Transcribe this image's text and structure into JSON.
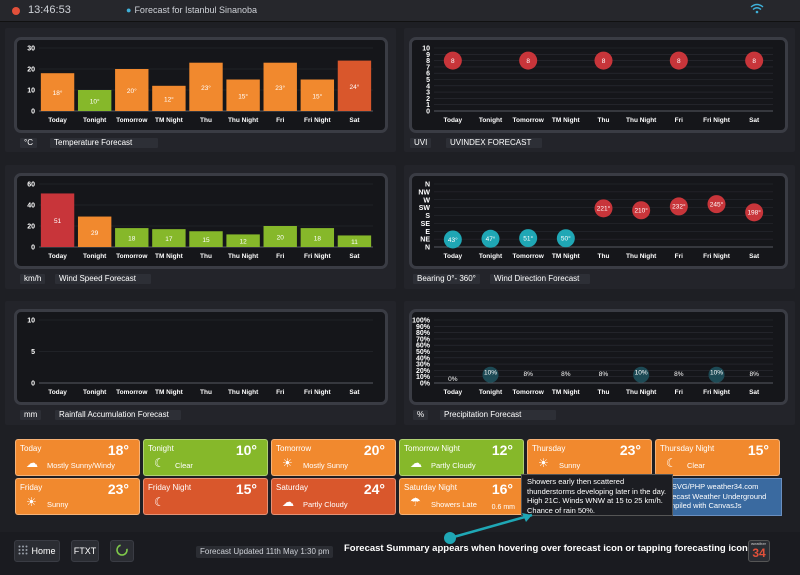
{
  "titlebar": {
    "time": "13:46:53",
    "location": "Forecast for Istanbul Sinanoba"
  },
  "colors": {
    "orange": "#f1892e",
    "green": "#86b82a",
    "red": "#c8353a",
    "brown": "#d9572c",
    "blue": "#3a6aa0",
    "teal": "#1fa7b5"
  },
  "panels": {
    "temperature": {
      "unit": "°C",
      "caption": "Temperature Forecast"
    },
    "uvi": {
      "unit": "UVI",
      "caption": "UVINDEX FORECAST"
    },
    "wind": {
      "unit": "km/h",
      "caption": "Wind Speed Forecast"
    },
    "direction": {
      "unit": "Bearing 0°- 360°",
      "caption": "Wind Direction Forecast"
    },
    "rain": {
      "unit": "mm",
      "caption": "Rainfall Accumulation Forecast"
    },
    "precip": {
      "unit": "%",
      "caption": "Precipitation Forecast"
    }
  },
  "chart_data": [
    {
      "id": "temperature",
      "type": "bar",
      "categories": [
        "Today",
        "Tonight",
        "Tomorrow",
        "TM Night",
        "Thu",
        "Thu Night",
        "Fri",
        "Fri Night",
        "Sat"
      ],
      "values": [
        18,
        10,
        20,
        12,
        23,
        15,
        23,
        15,
        24
      ],
      "labels": [
        "18°",
        "10°",
        "20°",
        "12°",
        "23°",
        "15°",
        "23°",
        "15°",
        "24°"
      ],
      "colors": [
        "#f1892e",
        "#86b82a",
        "#f1892e",
        "#f1892e",
        "#f1892e",
        "#f1892e",
        "#f1892e",
        "#f1892e",
        "#d9572c"
      ],
      "yticks": [
        0,
        10,
        20,
        30
      ],
      "ylim": [
        0,
        30
      ]
    },
    {
      "id": "uvi",
      "type": "scatter",
      "categories": [
        "Today",
        "Tonight",
        "Tomorrow",
        "TM Night",
        "Thu",
        "Thu Night",
        "Fri",
        "Fri Night",
        "Sat"
      ],
      "values": [
        8,
        null,
        8,
        null,
        8,
        null,
        8,
        null,
        8
      ],
      "labels": [
        "8",
        "",
        "8",
        "",
        "8",
        "",
        "8",
        "",
        "8"
      ],
      "yticks": [
        0,
        1,
        2,
        3,
        4,
        5,
        6,
        7,
        8,
        9,
        10
      ],
      "ylim": [
        0,
        10
      ]
    },
    {
      "id": "wind",
      "type": "bar",
      "categories": [
        "Today",
        "Tonight",
        "Tomorrow",
        "TM Night",
        "Thu",
        "Thu Night",
        "Fri",
        "Fri Night",
        "Sat"
      ],
      "values": [
        51,
        29,
        18,
        17,
        15,
        12,
        20,
        18,
        11
      ],
      "colors": [
        "#c8353a",
        "#f1892e",
        "#86b82a",
        "#86b82a",
        "#86b82a",
        "#86b82a",
        "#86b82a",
        "#86b82a",
        "#86b82a"
      ],
      "yticks": [
        0,
        20,
        40,
        60
      ],
      "ylim": [
        0,
        60
      ]
    },
    {
      "id": "direction",
      "type": "scatter",
      "categories": [
        "Today",
        "Tonight",
        "Tomorrow",
        "TM Night",
        "Thu",
        "Thu Night",
        "Fri",
        "Fri Night",
        "Sat"
      ],
      "values": [
        43,
        47,
        51,
        50,
        221,
        210,
        232,
        245,
        198
      ],
      "labels": [
        "43°",
        "47°",
        "51°",
        "50°",
        "221°",
        "210°",
        "232°",
        "245°",
        "198°"
      ],
      "yticks": [
        "N",
        "NE",
        "E",
        "SE",
        "S",
        "SW",
        "W",
        "NW",
        "N"
      ],
      "ylim": [
        0,
        360
      ]
    },
    {
      "id": "rain",
      "type": "bar",
      "categories": [
        "Today",
        "Tonight",
        "Tomorrow",
        "TM Night",
        "Thu",
        "Thu Night",
        "Fri",
        "Fri Night",
        "Sat"
      ],
      "values": [
        0,
        0,
        0,
        0,
        0,
        0,
        0,
        0,
        0
      ],
      "yticks": [
        0,
        5,
        10
      ],
      "ylim": [
        0,
        10
      ]
    },
    {
      "id": "precip",
      "type": "scatter",
      "categories": [
        "Today",
        "Tonight",
        "Tomorrow",
        "TM Night",
        "Thu",
        "Thu Night",
        "Fri",
        "Fri Night",
        "Sat"
      ],
      "values": [
        0,
        10,
        8,
        8,
        8,
        10,
        8,
        10,
        8
      ],
      "labels": [
        "0%",
        "10%",
        "8%",
        "8%",
        "8%",
        "10%",
        "8%",
        "10%",
        "8%"
      ],
      "yticks": [
        "0%",
        "10%",
        "20%",
        "30%",
        "40%",
        "50%",
        "60%",
        "70%",
        "80%",
        "90%",
        "100%"
      ],
      "ylim": [
        0,
        100
      ]
    }
  ],
  "forecast_cards": [
    {
      "name": "Today",
      "temp": "18°",
      "desc": "Mostly Sunny/Windy",
      "color": "#f1892e",
      "icon": "windy-sun-icon",
      "glyph": "☁"
    },
    {
      "name": "Tonight",
      "temp": "10°",
      "desc": "Clear",
      "color": "#86b82a",
      "icon": "moon-icon",
      "glyph": "☾"
    },
    {
      "name": "Tomorrow",
      "temp": "20°",
      "desc": "Mostly Sunny",
      "color": "#f1892e",
      "icon": "sun-icon",
      "glyph": "☀"
    },
    {
      "name": "Tomorrow Night",
      "temp": "12°",
      "desc": "Partly Cloudy",
      "color": "#86b82a",
      "icon": "cloud-moon-icon",
      "glyph": "☁"
    },
    {
      "name": "Thursday",
      "temp": "23°",
      "desc": "Sunny",
      "color": "#f1892e",
      "icon": "sun-icon",
      "glyph": "☀"
    },
    {
      "name": "Thursday Night",
      "temp": "15°",
      "desc": "Clear",
      "color": "#f1892e",
      "icon": "moon-icon",
      "glyph": "☾"
    },
    {
      "name": "Friday",
      "temp": "23°",
      "desc": "Sunny",
      "color": "#f1892e",
      "icon": "sun-icon",
      "glyph": "☀"
    },
    {
      "name": "Friday Night",
      "temp": "15°",
      "desc": "",
      "color": "#d9572c",
      "icon": "moon-icon",
      "glyph": "☾"
    },
    {
      "name": "Saturday",
      "temp": "24°",
      "desc": "Partly Cloudy",
      "color": "#d9572c",
      "icon": "cloud-sun-icon",
      "glyph": "☁"
    },
    {
      "name": "Saturday Night",
      "temp": "16°",
      "desc": "Showers Late",
      "color": "#f1892e",
      "icon": "rain-cloud-icon",
      "glyph": "☂",
      "extra": "0.6 mm"
    }
  ],
  "tooltip": {
    "text": "Showers early then scattered thunderstorms developing later in the day. High 21C. Winds WNW at 15 to 25 km/h. Chance of rain 50%."
  },
  "credit": {
    "line1": "JS/SVG/PHP weather34.com",
    "line2": "Forecast Weather Underground",
    "line3": "compiled with CanvasJs"
  },
  "bottom": {
    "home": "Home",
    "ftxt": "FTXT",
    "updated": "Forecast Updated 11th May 1:30 pm",
    "note": "Forecast Summary appears when hovering over forecast icon or tapping forecasting icon",
    "logo": "34",
    "logo_small": "weather"
  }
}
